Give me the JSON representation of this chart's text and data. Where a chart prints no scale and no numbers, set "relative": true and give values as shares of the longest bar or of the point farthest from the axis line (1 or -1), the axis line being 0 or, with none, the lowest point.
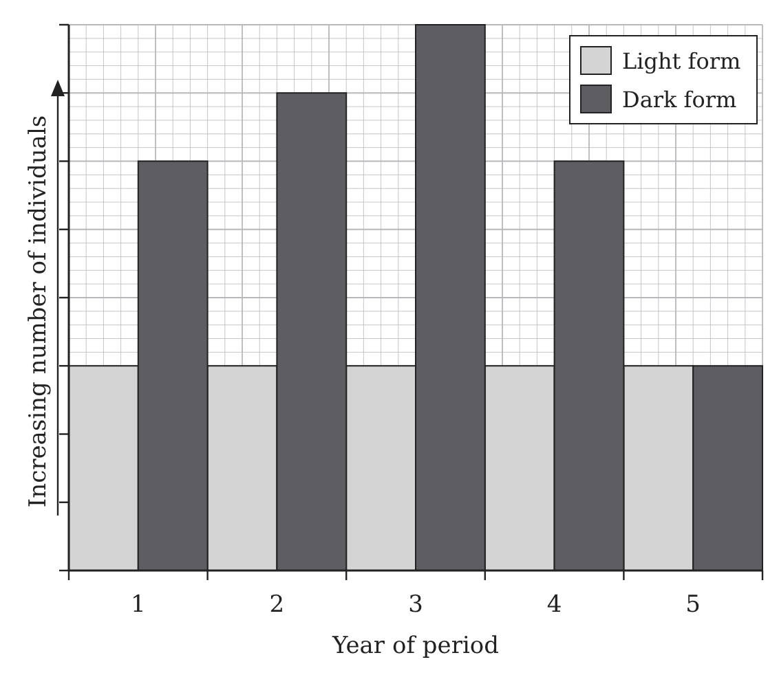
{
  "chart_data": {
    "type": "bar",
    "relative": true,
    "xlabel": "Year of period",
    "ylabel": "Increasing number of individuals",
    "categories": [
      "1",
      "2",
      "3",
      "4",
      "5"
    ],
    "series": [
      {
        "name": "Light form",
        "color": "#d4d4d4",
        "values": [
          0.375,
          0.375,
          0.375,
          0.375,
          0.375
        ]
      },
      {
        "name": "Dark form",
        "color": "#5e5e62",
        "values": [
          0.75,
          0.875,
          1,
          0.75,
          0.375
        ]
      }
    ],
    "grid": true,
    "legend": "top right"
  }
}
